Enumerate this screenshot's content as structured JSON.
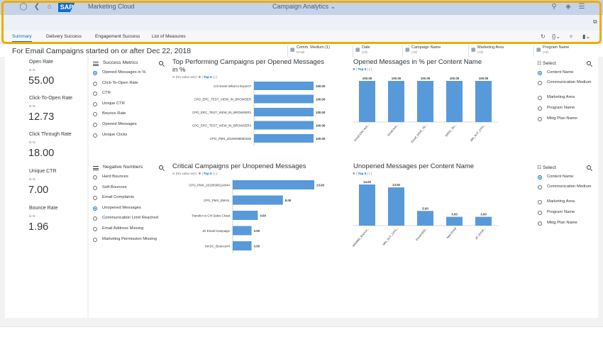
{
  "shell": {
    "app_name": "Marketing Cloud",
    "center_title": "Campaign Analytics",
    "logo_text": "SAP"
  },
  "tabs": [
    {
      "label": "Summary",
      "active": true
    },
    {
      "label": "Delivery Success",
      "active": false
    },
    {
      "label": "Engagement Success",
      "active": false
    },
    {
      "label": "List of Measures",
      "active": false
    }
  ],
  "page_heading": "For Email Campaigns started on or after Dec 22, 2018",
  "filters": [
    {
      "label": "Comm. Medium (1)",
      "value": "Email"
    },
    {
      "label": "Date",
      "value": "(All)"
    },
    {
      "label": "Campaign Name",
      "value": "(All)"
    },
    {
      "label": "Marketing Area",
      "value": "(All)"
    },
    {
      "label": "Program Name",
      "value": "(All)"
    }
  ],
  "kpis": [
    {
      "label": "Open Rate",
      "unit": "in %",
      "value": "55.00"
    },
    {
      "label": "Click-To-Open Rate",
      "unit": "in %",
      "value": "12.73"
    },
    {
      "label": "Click Through Rate",
      "unit": "in %",
      "value": "18.00"
    },
    {
      "label": "Unique CTR",
      "unit": "in %",
      "value": "7.00"
    },
    {
      "label": "Bounce Rate",
      "unit": "in %",
      "value": "1.96"
    }
  ],
  "success_metrics": {
    "title": "Success Metrics",
    "options": [
      "Opened Messages in %",
      "Click-To-Open Rate",
      "CTR",
      "Unique CTR",
      "Bounce Rate",
      "Opened Messages",
      "Unique Clicks"
    ],
    "selected": 0
  },
  "negative_numbers": {
    "title": "Negative Numbers",
    "options": [
      "Hard Bounces",
      "Soft Bounces",
      "Email Complaints",
      "Unopened Messages",
      "Communication Limit Reached",
      "Email Address Missing",
      "Marketing Permission Missing"
    ],
    "selected": 3
  },
  "select_top": {
    "title": "Select",
    "options": [
      "Content Name",
      "Communication Medium",
      "Marketing Area",
      "Program Name",
      "Mktg Plan Name"
    ],
    "selected": 0
  },
  "select_bottom": {
    "title": "Select",
    "options": [
      "Content Name",
      "Communication Medium",
      "Marketing Area",
      "Program Name",
      "Mktg Plan Name"
    ],
    "selected": 0
  },
  "chart_common": {
    "top5": "Top 5",
    "in_label": "in",
    "no_value_set": "(No value set)"
  },
  "chart_data": [
    {
      "type": "bar",
      "orientation": "horizontal",
      "title": "Top Performing Campaigns per Opened Messages in %",
      "categories": [
        "C/4 Event What to Expect?",
        "CPG_ERC_TEST_VIEW_IN_BROWSER",
        "CPG_ERC_TEST_VIEW_IN_BROWSER2",
        "CPG_ERC_TEST_VIEW_IN_BROWSER3",
        "CPG_PMX_20190308083336"
      ],
      "values": [
        100,
        100,
        100,
        100,
        100
      ],
      "labels": [
        "100.00",
        "100.00",
        "100.00",
        "100.00",
        "100.00"
      ],
      "color": "#5899da"
    },
    {
      "type": "bar",
      "orientation": "vertical",
      "title": "Opened Messages in % per Content Name",
      "categories": [
        "Email ERC test...",
        "Email test...",
        "Email_SAVE_TE...",
        "MASC_Bo...",
        "Mkt_AUT_CPG..."
      ],
      "values": [
        100,
        100,
        100,
        100,
        100
      ],
      "labels": [
        "100.00",
        "100.00",
        "100.00",
        "100.00",
        "100.00"
      ],
      "color": "#5899da"
    },
    {
      "type": "bar",
      "orientation": "horizontal",
      "title": "Critical Campaigns per Unopened Messages",
      "categories": [
        "CPG_PMX_20190306114044",
        "CPG_PMX_EMAIL",
        "Transfer to C/4 Sales Cloud",
        "JG Email Campaign",
        "MASC_Bounce#4"
      ],
      "values": [
        13,
        8,
        4,
        3,
        3
      ],
      "labels": [
        "13.00",
        "8.00",
        "4.00",
        "3.00",
        "3.00"
      ],
      "color": "#5899da"
    },
    {
      "type": "bar",
      "orientation": "vertical",
      "title": "Unopened Messages per Content Name",
      "categories": [
        "MS0980_Bounce...",
        "MKt_AUT_CPG...",
        "Email ADD...",
        "New Email",
        "JG_Email..."
      ],
      "values": [
        14,
        13,
        5,
        3,
        3
      ],
      "labels": [
        "14.00",
        "13.00",
        "5.00",
        "3.00",
        "3.00"
      ],
      "color": "#5899da"
    }
  ]
}
